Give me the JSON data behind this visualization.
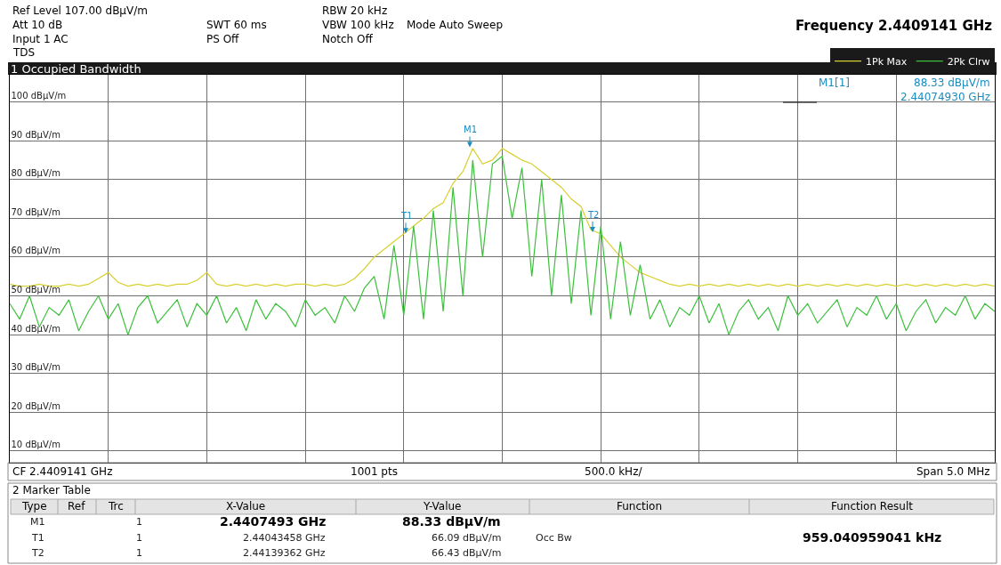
{
  "chart_data": {
    "type": "line",
    "title": "1 Occupied Bandwidth",
    "categories": [
      null,
      null,
      null,
      null,
      null,
      null,
      null,
      null,
      null,
      null,
      null,
      null,
      null,
      null,
      null,
      null,
      null,
      null,
      null,
      null,
      null,
      null,
      null,
      null,
      null,
      null,
      null,
      null,
      null,
      null,
      null,
      null,
      null,
      null,
      null,
      null,
      null,
      null,
      null,
      null,
      null,
      null,
      null,
      null,
      null,
      null,
      null,
      null,
      null,
      null,
      null,
      null,
      null,
      null,
      null,
      null,
      null,
      null,
      null,
      null,
      null,
      null,
      null,
      null,
      null,
      null,
      null,
      null,
      null,
      null,
      null,
      null,
      null,
      null,
      null,
      null,
      null,
      null,
      null,
      null,
      null,
      null,
      null,
      null,
      null,
      null,
      null,
      null,
      null,
      null,
      null,
      null,
      null,
      null,
      null,
      null,
      null,
      null,
      null,
      null,
      null
    ],
    "series": [
      {
        "name": "1Pk Max",
        "color": "#d8d030",
        "values": [
          53,
          52.5,
          52.5,
          53,
          52.5,
          52.5,
          53,
          52.5,
          53,
          54.5,
          56,
          53.5,
          52.5,
          53,
          52.5,
          53,
          52.5,
          53,
          53,
          54,
          56,
          53,
          52.5,
          53,
          52.5,
          53,
          52.5,
          53,
          52.5,
          53,
          53,
          52.5,
          53,
          52.5,
          53,
          54.5,
          57,
          60,
          62,
          64,
          66,
          68,
          70,
          72.5,
          74,
          79,
          82,
          88,
          84,
          85,
          88,
          86.5,
          85,
          84,
          82,
          80,
          78,
          75,
          73,
          67,
          66,
          63,
          60,
          58,
          56,
          55,
          54,
          53,
          52.5,
          53,
          52.5,
          53,
          52.5,
          53,
          52.5,
          53,
          52.5,
          53,
          52.5,
          53,
          52.5,
          53,
          52.5,
          53,
          52.5,
          53,
          52.5,
          53,
          52.5,
          53,
          52.5,
          53,
          52.5,
          53,
          52.5,
          53,
          52.5,
          53,
          52.5,
          53,
          52.5
        ]
      },
      {
        "name": "2Pk Clrw",
        "color": "#3cc03c",
        "values": [
          48,
          44,
          50,
          42,
          47,
          45,
          49,
          41,
          46,
          50,
          44,
          48,
          40,
          47,
          50,
          43,
          46,
          49,
          42,
          48,
          45,
          50,
          43,
          47,
          41,
          49,
          44,
          48,
          46,
          42,
          49,
          45,
          47,
          43,
          50,
          46,
          52,
          55,
          44,
          63,
          45,
          68,
          44,
          72,
          46,
          78,
          50,
          85,
          60,
          84,
          86,
          70,
          83,
          55,
          80,
          50,
          76,
          48,
          72,
          45,
          68,
          44,
          64,
          45,
          58,
          44,
          49,
          42,
          47,
          45,
          50,
          43,
          48,
          40,
          46,
          49,
          44,
          47,
          41,
          50,
          45,
          48,
          43,
          46,
          49,
          42,
          47,
          45,
          50,
          44,
          48,
          41,
          46,
          49,
          43,
          47,
          45,
          50,
          44,
          48,
          46
        ]
      }
    ],
    "ylim": [
      7,
      107
    ],
    "yticks": [
      {
        "value": 10,
        "label": "10 dBµV/m"
      },
      {
        "value": 20,
        "label": "20 dBµV/m"
      },
      {
        "value": 30,
        "label": "30 dBµV/m"
      },
      {
        "value": 40,
        "label": "40 dBµV/m"
      },
      {
        "value": 50,
        "label": "50 dBµV/m"
      },
      {
        "value": 60,
        "label": "60 dBµV/m"
      },
      {
        "value": 70,
        "label": "70 dBµV/m"
      },
      {
        "value": 80,
        "label": "80 dBµV/m"
      },
      {
        "value": 90,
        "label": "90 dBµV/m"
      },
      {
        "value": 100,
        "label": "100 dBµV/m"
      }
    ],
    "grid": true,
    "legend": "top right",
    "marker": "none",
    "line_style": "solid",
    "annotations": [
      "Ref Level 107.00 dBµV/m",
      "Att 10 dB",
      "Input 1 AC",
      "TDS",
      "SWT 60 ms",
      "PS Off",
      "RBW 20 kHz",
      "VBW 100 kHz",
      "Notch Off",
      "Mode Auto Sweep",
      "Frequency 2.4409141 GHz",
      "M1[1]",
      "88.33 dBµV/m",
      "2.44074930 GHz",
      "CF 2.4409141 GHz",
      "1001 pts",
      "500.0 kHz/",
      "Span 5.0 MHz",
      "2 Marker Table",
      "Type",
      "Ref",
      "Trc",
      "X-Value",
      "Y-Value",
      "Function",
      "Function Result",
      "M1",
      "1",
      "2.4407493 GHz",
      "88.33 dBµV/m",
      "T1",
      "1",
      "2.44043458 GHz",
      "66.09 dBµV/m",
      "Occ Bw",
      "959.040959041 kHz",
      "T2",
      "1",
      "2.44139362 GHz",
      "66.43 dBµV/m",
      {
        "text": "M1",
        "y": 88.33
      },
      {
        "text": "T1",
        "y": 66.09
      },
      {
        "text": "T2",
        "y": 66.43
      }
    ]
  }
}
